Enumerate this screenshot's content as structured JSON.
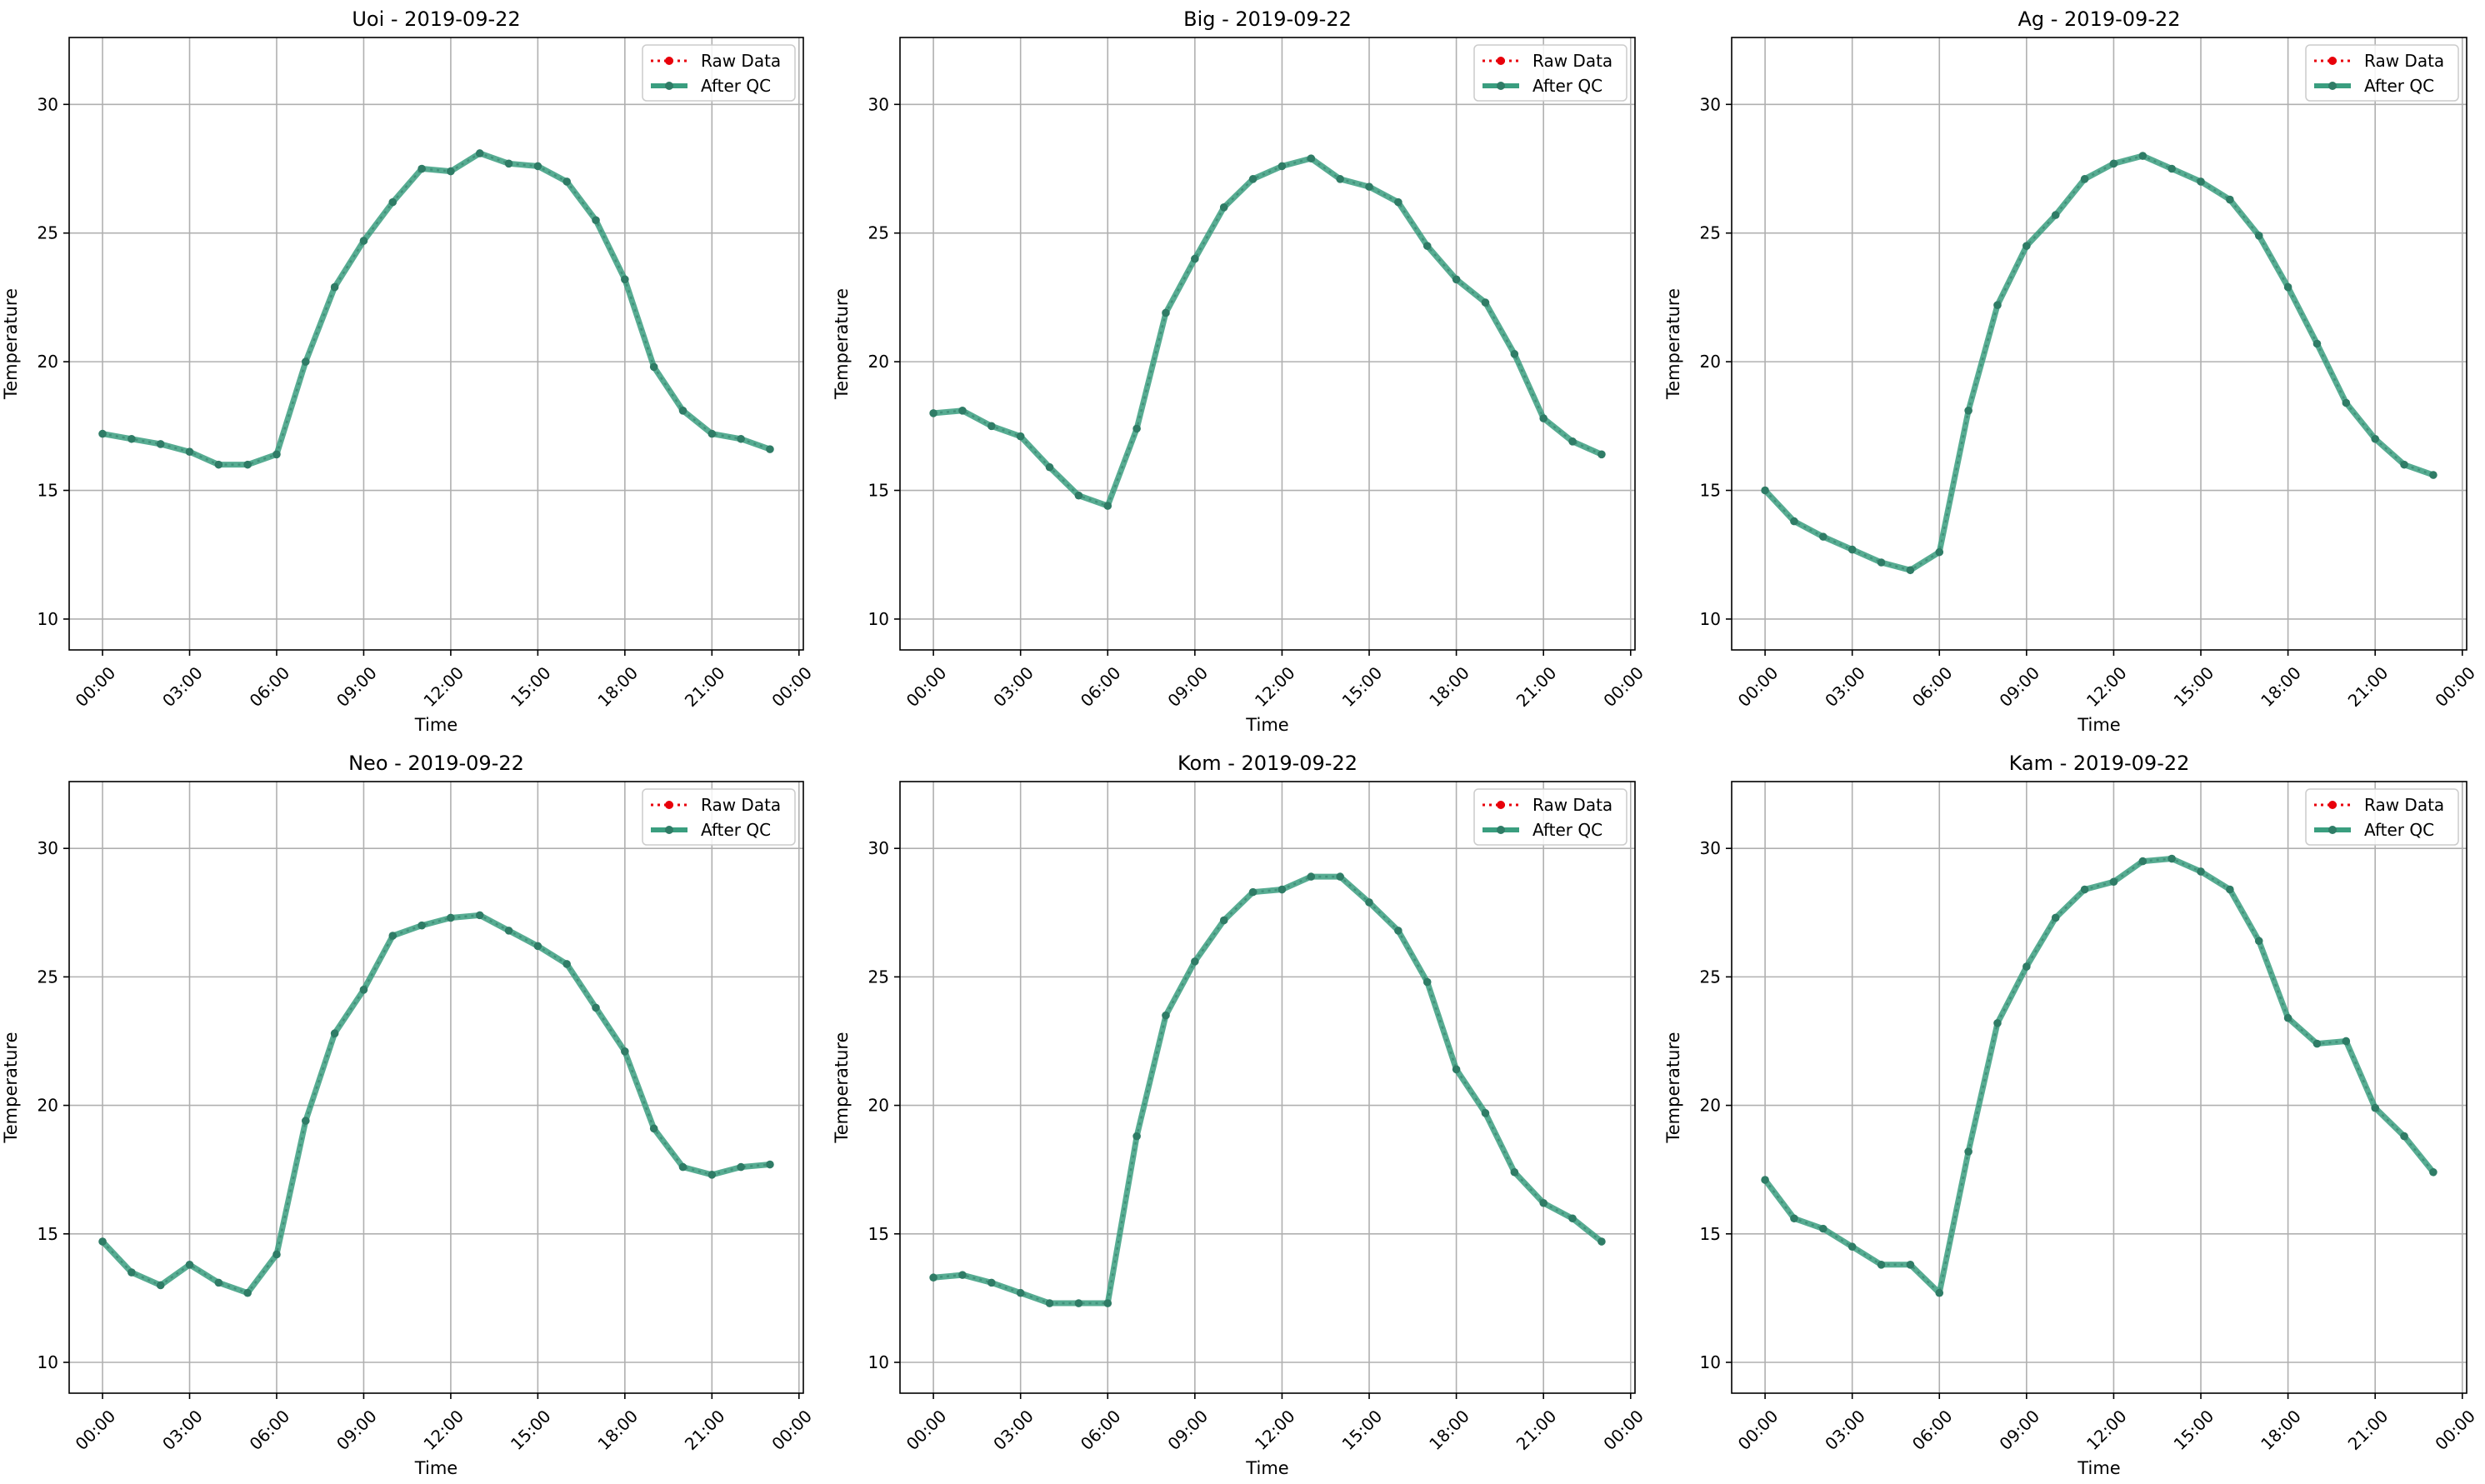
{
  "figure": {
    "background": "#ffffff"
  },
  "legend": {
    "raw_label": "Raw Data",
    "qc_label": "After QC",
    "raw_color": "#e8000b",
    "qc_color": "#3a9e7f",
    "qc_marker_color": "#2f7c66"
  },
  "chart_data": [
    {
      "type": "line",
      "title": "Uoi - 2019-09-22",
      "xlabel": "Time",
      "ylabel": "Temperature",
      "xlim": [
        -1.15,
        24.15
      ],
      "ylim": [
        8.8,
        32.6
      ],
      "xticks": [
        0,
        3,
        6,
        9,
        12,
        15,
        18,
        21,
        24
      ],
      "xtick_labels": [
        "00:00",
        "03:00",
        "06:00",
        "09:00",
        "12:00",
        "15:00",
        "18:00",
        "21:00",
        "00:00"
      ],
      "yticks": [
        10,
        15,
        20,
        25,
        30
      ],
      "grid": true,
      "legend_position": "top-right",
      "x": [
        0,
        1,
        2,
        3,
        4,
        5,
        6,
        7,
        8,
        9,
        10,
        11,
        12,
        13,
        14,
        15,
        16,
        17,
        18,
        19,
        20,
        21,
        22,
        23
      ],
      "series": [
        {
          "name": "Raw Data",
          "values": [
            17.2,
            17.0,
            16.8,
            16.5,
            16.0,
            16.0,
            16.4,
            20.0,
            22.9,
            24.7,
            26.2,
            27.5,
            27.4,
            28.1,
            27.7,
            27.6,
            27.0,
            25.5,
            23.2,
            19.8,
            18.1,
            17.2,
            17.0,
            16.6
          ]
        },
        {
          "name": "After QC",
          "values": [
            17.2,
            17.0,
            16.8,
            16.5,
            16.0,
            16.0,
            16.4,
            20.0,
            22.9,
            24.7,
            26.2,
            27.5,
            27.4,
            28.1,
            27.7,
            27.6,
            27.0,
            25.5,
            23.2,
            19.8,
            18.1,
            17.2,
            17.0,
            16.6
          ]
        }
      ]
    },
    {
      "type": "line",
      "title": "Big - 2019-09-22",
      "xlabel": "Time",
      "ylabel": "Temperature",
      "xlim": [
        -1.15,
        24.15
      ],
      "ylim": [
        8.8,
        32.6
      ],
      "xticks": [
        0,
        3,
        6,
        9,
        12,
        15,
        18,
        21,
        24
      ],
      "xtick_labels": [
        "00:00",
        "03:00",
        "06:00",
        "09:00",
        "12:00",
        "15:00",
        "18:00",
        "21:00",
        "00:00"
      ],
      "yticks": [
        10,
        15,
        20,
        25,
        30
      ],
      "grid": true,
      "legend_position": "top-right",
      "x": [
        0,
        1,
        2,
        3,
        4,
        5,
        6,
        7,
        8,
        9,
        10,
        11,
        12,
        13,
        14,
        15,
        16,
        17,
        18,
        19,
        20,
        21,
        22,
        23
      ],
      "series": [
        {
          "name": "Raw Data",
          "values": [
            18.0,
            18.1,
            17.5,
            17.1,
            15.9,
            14.8,
            14.4,
            17.4,
            21.9,
            24.0,
            26.0,
            27.1,
            27.6,
            27.9,
            27.1,
            26.8,
            26.2,
            24.5,
            23.2,
            22.3,
            20.3,
            17.8,
            16.9,
            16.4
          ]
        },
        {
          "name": "After QC",
          "values": [
            18.0,
            18.1,
            17.5,
            17.1,
            15.9,
            14.8,
            14.4,
            17.4,
            21.9,
            24.0,
            26.0,
            27.1,
            27.6,
            27.9,
            27.1,
            26.8,
            26.2,
            24.5,
            23.2,
            22.3,
            20.3,
            17.8,
            16.9,
            16.4
          ]
        }
      ]
    },
    {
      "type": "line",
      "title": "Ag - 2019-09-22",
      "xlabel": "Time",
      "ylabel": "Temperature",
      "xlim": [
        -1.15,
        24.15
      ],
      "ylim": [
        8.8,
        32.6
      ],
      "xticks": [
        0,
        3,
        6,
        9,
        12,
        15,
        18,
        21,
        24
      ],
      "xtick_labels": [
        "00:00",
        "03:00",
        "06:00",
        "09:00",
        "12:00",
        "15:00",
        "18:00",
        "21:00",
        "00:00"
      ],
      "yticks": [
        10,
        15,
        20,
        25,
        30
      ],
      "grid": true,
      "legend_position": "top-right",
      "x": [
        0,
        1,
        2,
        3,
        4,
        5,
        6,
        7,
        8,
        9,
        10,
        11,
        12,
        13,
        14,
        15,
        16,
        17,
        18,
        19,
        20,
        21,
        22,
        23
      ],
      "series": [
        {
          "name": "Raw Data",
          "values": [
            15.0,
            13.8,
            13.2,
            12.7,
            12.2,
            11.9,
            12.6,
            18.1,
            22.2,
            24.5,
            25.7,
            27.1,
            27.7,
            28.0,
            27.5,
            27.0,
            26.3,
            24.9,
            22.9,
            20.7,
            18.4,
            17.0,
            16.0,
            15.6
          ]
        },
        {
          "name": "After QC",
          "values": [
            15.0,
            13.8,
            13.2,
            12.7,
            12.2,
            11.9,
            12.6,
            18.1,
            22.2,
            24.5,
            25.7,
            27.1,
            27.7,
            28.0,
            27.5,
            27.0,
            26.3,
            24.9,
            22.9,
            20.7,
            18.4,
            17.0,
            16.0,
            15.6
          ]
        }
      ]
    },
    {
      "type": "line",
      "title": "Neo - 2019-09-22",
      "xlabel": "Time",
      "ylabel": "Temperature",
      "xlim": [
        -1.15,
        24.15
      ],
      "ylim": [
        8.8,
        32.6
      ],
      "xticks": [
        0,
        3,
        6,
        9,
        12,
        15,
        18,
        21,
        24
      ],
      "xtick_labels": [
        "00:00",
        "03:00",
        "06:00",
        "09:00",
        "12:00",
        "15:00",
        "18:00",
        "21:00",
        "00:00"
      ],
      "yticks": [
        10,
        15,
        20,
        25,
        30
      ],
      "grid": true,
      "legend_position": "top-right",
      "x": [
        0,
        1,
        2,
        3,
        4,
        5,
        6,
        7,
        8,
        9,
        10,
        11,
        12,
        13,
        14,
        15,
        16,
        17,
        18,
        19,
        20,
        21,
        22,
        23
      ],
      "series": [
        {
          "name": "Raw Data",
          "values": [
            14.7,
            13.5,
            13.0,
            13.8,
            13.1,
            12.7,
            14.2,
            19.4,
            22.8,
            24.5,
            26.6,
            27.0,
            27.3,
            27.4,
            26.8,
            26.2,
            25.5,
            23.8,
            22.1,
            19.1,
            17.6,
            17.3,
            17.6,
            17.7
          ]
        },
        {
          "name": "After QC",
          "values": [
            14.7,
            13.5,
            13.0,
            13.8,
            13.1,
            12.7,
            14.2,
            19.4,
            22.8,
            24.5,
            26.6,
            27.0,
            27.3,
            27.4,
            26.8,
            26.2,
            25.5,
            23.8,
            22.1,
            19.1,
            17.6,
            17.3,
            17.6,
            17.7
          ]
        }
      ]
    },
    {
      "type": "line",
      "title": "Kom - 2019-09-22",
      "xlabel": "Time",
      "ylabel": "Temperature",
      "xlim": [
        -1.15,
        24.15
      ],
      "ylim": [
        8.8,
        32.6
      ],
      "xticks": [
        0,
        3,
        6,
        9,
        12,
        15,
        18,
        21,
        24
      ],
      "xtick_labels": [
        "00:00",
        "03:00",
        "06:00",
        "09:00",
        "12:00",
        "15:00",
        "18:00",
        "21:00",
        "00:00"
      ],
      "yticks": [
        10,
        15,
        20,
        25,
        30
      ],
      "grid": true,
      "legend_position": "top-right",
      "x": [
        0,
        1,
        2,
        3,
        4,
        5,
        6,
        7,
        8,
        9,
        10,
        11,
        12,
        13,
        14,
        15,
        16,
        17,
        18,
        19,
        20,
        21,
        22,
        23
      ],
      "series": [
        {
          "name": "Raw Data",
          "values": [
            13.3,
            13.4,
            13.1,
            12.7,
            12.3,
            12.3,
            12.3,
            18.8,
            23.5,
            25.6,
            27.2,
            28.3,
            28.4,
            28.9,
            28.9,
            27.9,
            26.8,
            24.8,
            21.4,
            19.7,
            17.4,
            16.2,
            15.6,
            14.7
          ]
        },
        {
          "name": "After QC",
          "values": [
            13.3,
            13.4,
            13.1,
            12.7,
            12.3,
            12.3,
            12.3,
            18.8,
            23.5,
            25.6,
            27.2,
            28.3,
            28.4,
            28.9,
            28.9,
            27.9,
            26.8,
            24.8,
            21.4,
            19.7,
            17.4,
            16.2,
            15.6,
            14.7
          ]
        }
      ]
    },
    {
      "type": "line",
      "title": "Kam - 2019-09-22",
      "xlabel": "Time",
      "ylabel": "Temperature",
      "xlim": [
        -1.15,
        24.15
      ],
      "ylim": [
        8.8,
        32.6
      ],
      "xticks": [
        0,
        3,
        6,
        9,
        12,
        15,
        18,
        21,
        24
      ],
      "xtick_labels": [
        "00:00",
        "03:00",
        "06:00",
        "09:00",
        "12:00",
        "15:00",
        "18:00",
        "21:00",
        "00:00"
      ],
      "yticks": [
        10,
        15,
        20,
        25,
        30
      ],
      "grid": true,
      "legend_position": "top-right",
      "x": [
        0,
        1,
        2,
        3,
        4,
        5,
        6,
        7,
        8,
        9,
        10,
        11,
        12,
        13,
        14,
        15,
        16,
        17,
        18,
        19,
        20,
        21,
        22,
        23
      ],
      "series": [
        {
          "name": "Raw Data",
          "values": [
            17.1,
            15.6,
            15.2,
            14.5,
            13.8,
            13.8,
            12.7,
            18.2,
            23.2,
            25.4,
            27.3,
            28.4,
            28.7,
            29.5,
            29.6,
            29.1,
            28.4,
            26.4,
            23.4,
            22.4,
            22.5,
            19.9,
            18.8,
            17.4
          ]
        },
        {
          "name": "After QC",
          "values": [
            17.1,
            15.6,
            15.2,
            14.5,
            13.8,
            13.8,
            12.7,
            18.2,
            23.2,
            25.4,
            27.3,
            28.4,
            28.7,
            29.5,
            29.6,
            29.1,
            28.4,
            26.4,
            23.4,
            22.4,
            22.5,
            19.9,
            18.8,
            17.4
          ]
        }
      ]
    }
  ]
}
